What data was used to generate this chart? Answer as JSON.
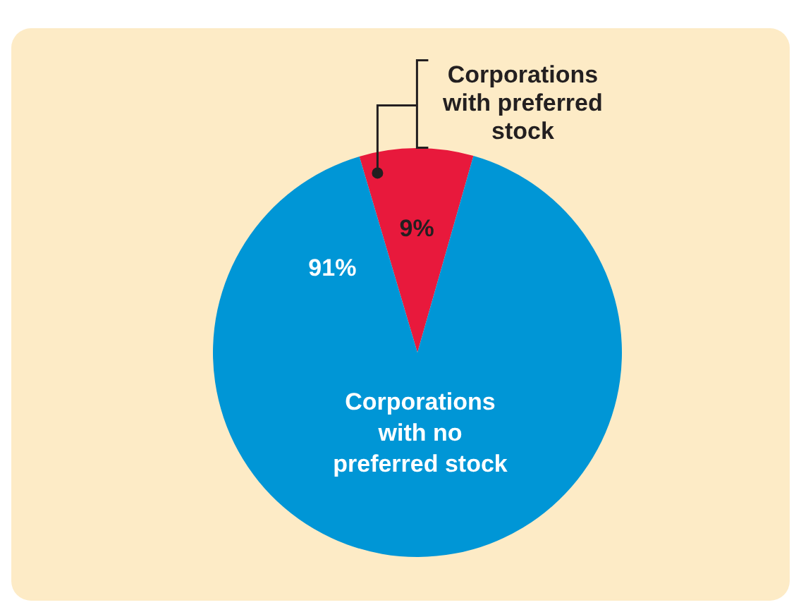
{
  "chart_data": {
    "type": "pie",
    "categories": [
      "Corporations with preferred stock",
      "Corporations with no preferred stock"
    ],
    "values": [
      9,
      91
    ],
    "colors": [
      "#e8193c",
      "#0096d6"
    ],
    "value_labels": [
      "9%",
      "91%"
    ]
  }
}
